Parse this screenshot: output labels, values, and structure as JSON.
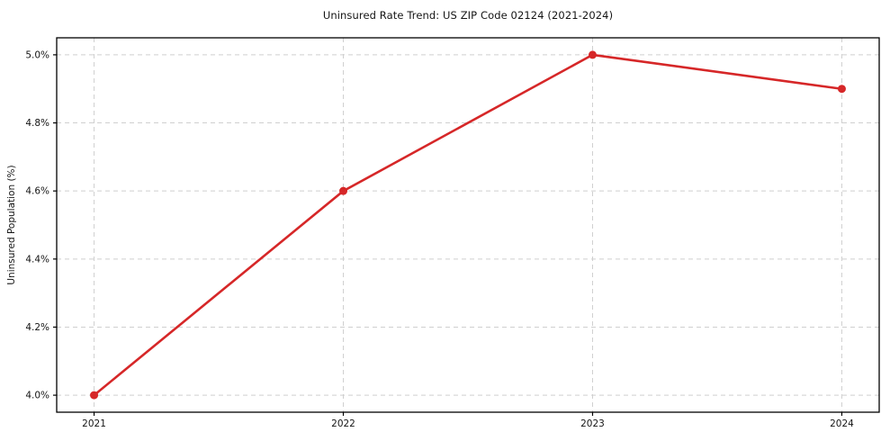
{
  "chart_data": {
    "type": "line",
    "title": "Uninsured Rate Trend: US ZIP Code 02124 (2021-2024)",
    "xlabel": "",
    "ylabel": "Uninsured Population (%)",
    "x": [
      2021,
      2022,
      2023,
      2024
    ],
    "series": [
      {
        "name": "uninsured-rate",
        "values": [
          4.0,
          4.6,
          5.0,
          4.9
        ]
      }
    ],
    "xticks": {
      "values": [
        2021,
        2022,
        2023,
        2024
      ],
      "labels": [
        "2021",
        "2022",
        "2023",
        "2024"
      ]
    },
    "yticks": {
      "values": [
        4.0,
        4.2,
        4.4,
        4.6,
        4.8,
        5.0
      ],
      "labels": [
        "4.0%",
        "4.2%",
        "4.4%",
        "4.6%",
        "4.8%",
        "5.0%"
      ]
    },
    "xlim": [
      2020.85,
      2024.15
    ],
    "ylim": [
      3.95,
      5.05
    ],
    "grid": true,
    "grid_style": "dashed",
    "legend_position": "none",
    "colors": {
      "line": "#d62728",
      "marker": "#d62728",
      "grid": "#cfcfcf",
      "spine": "#000000",
      "text": "#141414",
      "background": "#ffffff"
    }
  }
}
